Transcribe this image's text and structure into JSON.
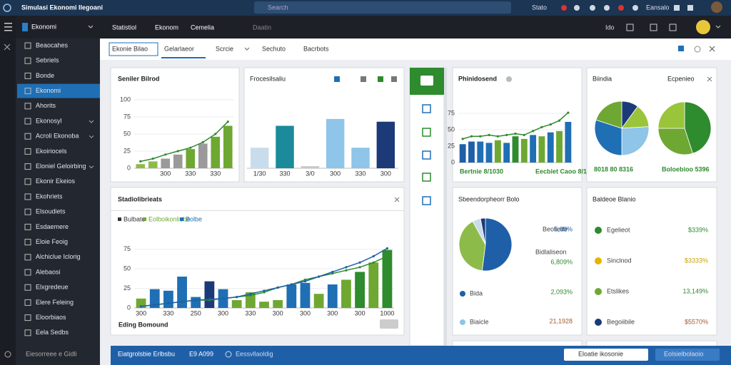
{
  "topbar": {
    "title": "Simulasi Ekonomi Ilegoani",
    "search": "Search",
    "items": [
      "Stato",
      "Eansalo"
    ]
  },
  "navbar": {
    "section": "Ekonomi",
    "menu": [
      "Statistiol",
      "Ekonom",
      "Cemelia"
    ],
    "extra": "Daatin",
    "right": "Ido"
  },
  "sidebar": {
    "items": [
      "Beaocahes",
      "Sebriels",
      "Bonde",
      "Ekonomi",
      "Ahorits",
      "Ekonosyl",
      "Acroli Ekonoba",
      "Ekoiriocels",
      "Eloniel Geloirbing",
      "Ekonir Ekeios",
      "Ekohriets",
      "Elsoudiets",
      "Esdaemere",
      "Eloie Feoig",
      "Alchiclue Iclorig",
      "Alebaosi",
      "Elxgredeue",
      "Elere Feleing",
      "Eloorbiaos",
      "Eela Sedbs"
    ],
    "active": 3,
    "footer": "Eiesorreee e Gidli"
  },
  "tabs": {
    "items": [
      "Ekonie Bilao",
      "Gelarlaeor",
      "Scrcie",
      "Sechuto",
      "Bacrbots"
    ],
    "active": 1
  },
  "panel_a": {
    "title": "Seniler Bilrod",
    "chart": {
      "values": [
        6,
        10,
        14,
        20,
        28,
        36,
        46,
        62
      ],
      "colors": [
        "#8dbb4a",
        "#8dbb4a",
        "#9a9a9a",
        "#9a9a9a",
        "#6ea832",
        "#9a9a9a",
        "#6ea832",
        "#6ea832"
      ],
      "line": [
        10,
        14,
        20,
        25,
        30,
        38,
        50,
        68
      ],
      "line_color": "#2e8b2e",
      "ylim": [
        0,
        100
      ],
      "yticks": [
        0,
        25,
        50,
        75,
        100
      ],
      "categories": [
        null,
        null,
        "300",
        null,
        "330",
        null,
        "330",
        null
      ]
    }
  },
  "panel_b": {
    "title": "Frocesilsaliu",
    "chart": {
      "values": [
        30,
        62,
        3,
        72,
        30,
        68
      ],
      "colors": [
        "#c8dcec",
        "#1b8a9a",
        "#c8c8c8",
        "#8ec5e8",
        "#8ec5e8",
        "#1c3a78"
      ],
      "ylim": [
        0,
        100
      ],
      "yticks": [],
      "categories": [
        "1/30",
        "330",
        "3/0",
        "300",
        "330",
        "300"
      ]
    }
  },
  "panel_c": {
    "title": "Phinidosend",
    "foot": [
      "Bertnie 8/1030",
      "Eecbiet Caoo 8/1"
    ],
    "chart": {
      "values": [
        28,
        32,
        32,
        30,
        34,
        30,
        40,
        36,
        42,
        40,
        46,
        48,
        62
      ],
      "colors": [
        "#1f5fa8",
        "#1f5fa8",
        "#1f6fb5",
        "#1f6fb5",
        "#6ea832",
        "#1f6fb5",
        "#2e8b2e",
        "#6ea832",
        "#1f6fb5",
        "#6ea832",
        "#1f6fb5",
        "#6ea832",
        "#1f6fb5"
      ],
      "line": [
        36,
        40,
        40,
        42,
        40,
        42,
        44,
        42,
        48,
        54,
        58,
        64,
        76
      ],
      "line_color": "#2e8b2e",
      "ylim": [
        0,
        100
      ],
      "yticks": [
        0,
        25,
        50,
        75
      ],
      "categories": []
    }
  },
  "panel_d": {
    "title": "Biindia",
    "subtitle": "Ecpenieo",
    "labels": [
      "8018 80 8316",
      "Boloebioo 5396"
    ],
    "pies": [
      {
        "values": [
          10,
          14,
          26,
          30,
          20
        ],
        "colors": [
          "#1c3a78",
          "#9ac43a",
          "#8ec5e8",
          "#1f6fb5",
          "#6ea832"
        ]
      },
      {
        "values": [
          45,
          30,
          25
        ],
        "colors": [
          "#2e8b2e",
          "#6ea832",
          "#9ac43a"
        ]
      }
    ]
  },
  "panel_e": {
    "title": "Stadiolibrieats",
    "legend": [
      "Bulbato",
      "Eolboikonliobe",
      "Bolbe"
    ],
    "foot": "Eding Bomound",
    "chart": {
      "values": [
        12,
        24,
        22,
        40,
        14,
        34,
        24,
        10,
        20,
        8,
        10,
        30,
        32,
        18,
        30,
        36,
        46,
        58,
        74
      ],
      "colors": [
        "#6ea832",
        "#1f6fb5",
        "#1f6fb5",
        "#1f6fb5",
        "#1f6fb5",
        "#1c3a78",
        "#1f6fb5",
        "#6ea832",
        "#6ea832",
        "#6ea832",
        "#6ea832",
        "#1f6fb5",
        "#1f6fb5",
        "#6ea832",
        "#1f6fb5",
        "#6ea832",
        "#2e8b2e",
        "#6ea832",
        "#2e8b2e"
      ],
      "line": [
        2,
        4,
        6,
        8,
        10,
        10,
        12,
        14,
        16,
        20,
        26,
        30,
        36,
        40,
        44,
        48,
        52,
        58,
        66
      ],
      "line_color": "#2e8b2e",
      "line2": [
        2,
        4,
        6,
        8,
        10,
        11,
        12,
        14,
        18,
        22,
        26,
        30,
        34,
        40,
        46,
        52,
        58,
        66,
        76
      ],
      "line2_color": "#1f5fa8",
      "ylim": [
        0,
        100
      ],
      "yticks": [
        0,
        25,
        50,
        75
      ],
      "categories": [
        "300",
        null,
        "330",
        null,
        "250",
        null,
        "300",
        null,
        "330",
        null,
        "300",
        null,
        "300",
        null,
        "300",
        null,
        "300",
        null,
        "1000"
      ]
    }
  },
  "panel_f": {
    "title": "Sbeendorpheorr Bolo",
    "pie": {
      "values": [
        52,
        40,
        5,
        3
      ],
      "colors": [
        "#1f5fa8",
        "#8dbb4a",
        "#c8dcec",
        "#1c3a78"
      ]
    },
    "stats": [
      {
        "label": "Beoliede",
        "value": "5,99%"
      },
      {
        "label": "Bidlaliseon",
        "value": "6,809%"
      },
      {
        "label": "Bida",
        "value": "2,093%"
      },
      {
        "label": "Biaicle",
        "value": "21,1928"
      }
    ]
  },
  "panel_g": {
    "title": "Baldeoe Blanio",
    "rows": [
      {
        "label": "Egelieot",
        "value": "$339%",
        "color": "#2e8b2e"
      },
      {
        "label": "Sinclnod",
        "value": "$3333%",
        "color": "#e8b400"
      },
      {
        "label": "Etslikes",
        "value": "13,149%",
        "color": "#6ea832"
      },
      {
        "label": "Begoiibile",
        "value": "$5570%",
        "color": "#1c3a78"
      }
    ]
  },
  "bottombar": {
    "left": "Eiatgrolsbie Erlbsbu",
    "count": "E9 A099",
    "status": "Eessvllaoldig",
    "field": "Eloatie ikosonie",
    "button": "Eolsielbolaoio"
  }
}
